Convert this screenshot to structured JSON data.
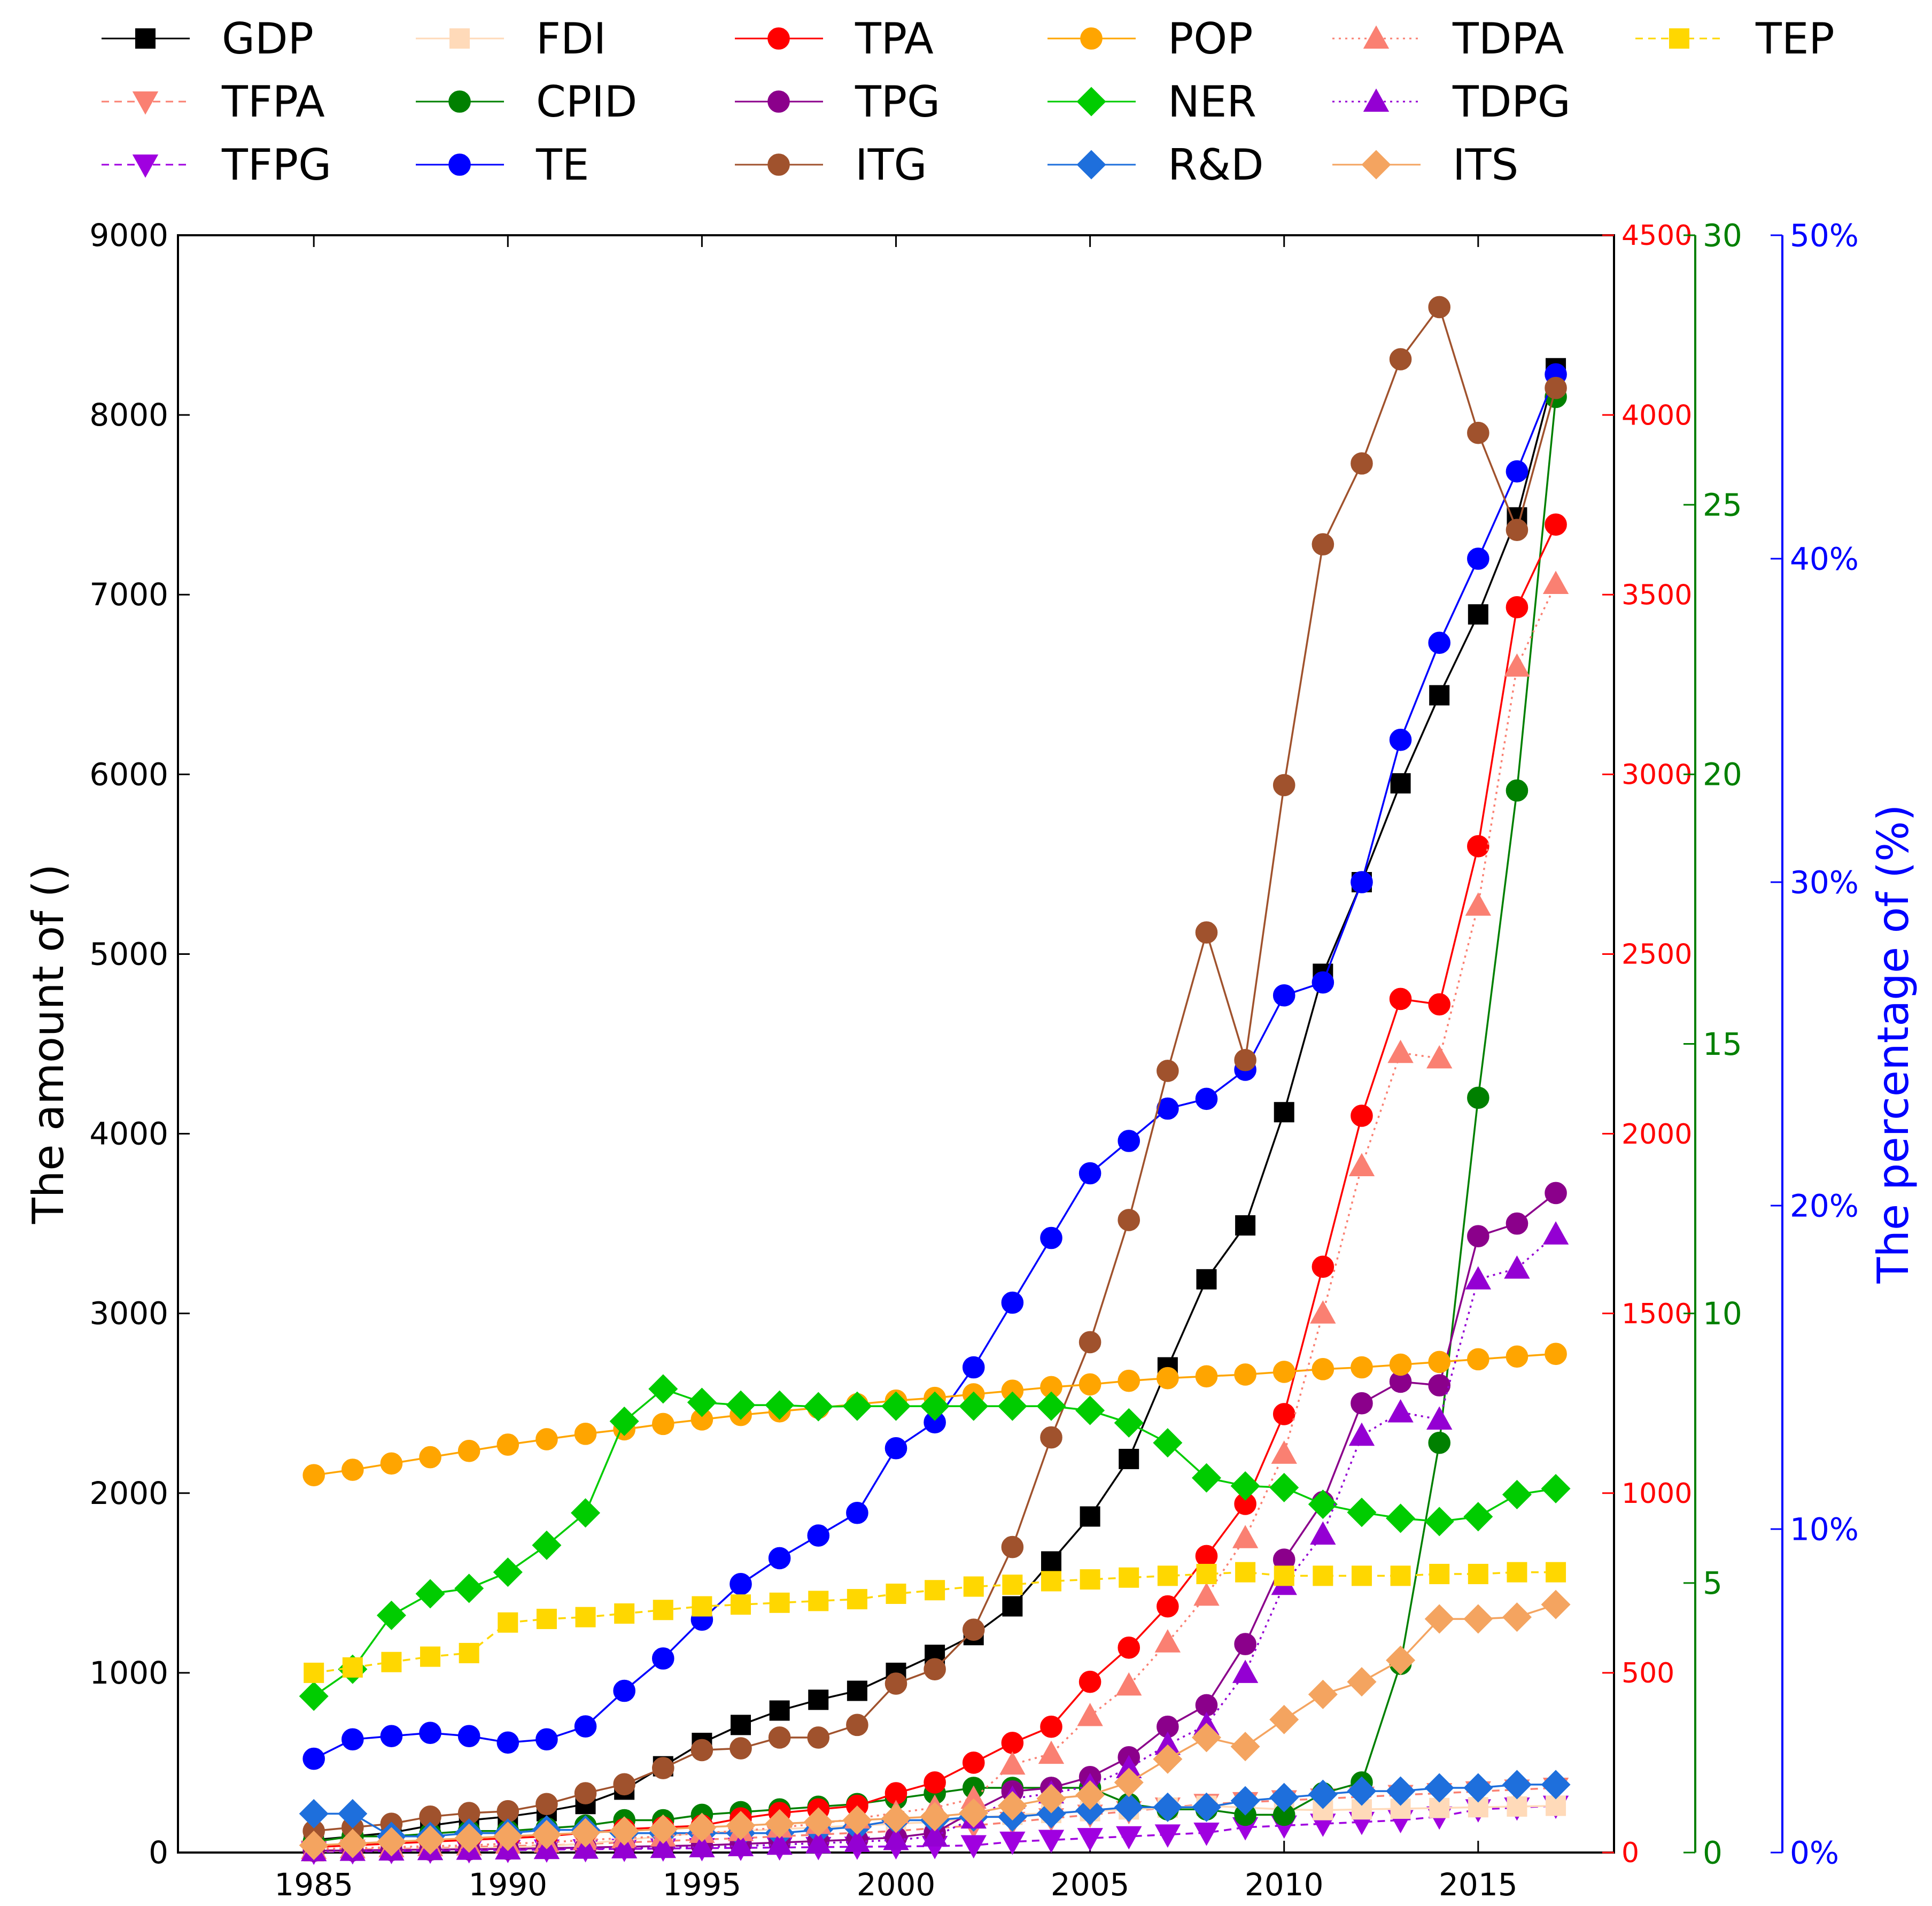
{
  "chart_data": {
    "type": "line",
    "title": "",
    "xlabel": "",
    "ylabel": "The amount of ()",
    "y2label": "",
    "y4label": "The percentage of (%)",
    "x": [
      1985,
      1986,
      1987,
      1988,
      1989,
      1990,
      1991,
      1992,
      1993,
      1994,
      1995,
      1996,
      1997,
      1998,
      1999,
      2000,
      2001,
      2002,
      2003,
      2004,
      2005,
      2006,
      2007,
      2008,
      2009,
      2010,
      2011,
      2012,
      2013,
      2014,
      2015,
      2016,
      2017
    ],
    "xlim": [
      1981.5,
      2018.5
    ],
    "x_ticks": [
      "1985",
      "1990",
      "1995",
      "2000",
      "2005",
      "2010",
      "2015"
    ],
    "axes": {
      "left": {
        "range": [
          0,
          9000
        ],
        "ticks": [
          "0",
          "1000",
          "2000",
          "3000",
          "4000",
          "5000",
          "6000",
          "7000",
          "8000",
          "9000"
        ],
        "color": "#000000"
      },
      "right_red": {
        "range": [
          0,
          4500
        ],
        "ticks": [
          "0",
          "500",
          "1000",
          "1500",
          "2000",
          "2500",
          "3000",
          "3500",
          "4000",
          "4500"
        ],
        "color": "#ff0000"
      },
      "right_green": {
        "range": [
          0,
          30
        ],
        "ticks": [
          "0",
          "5",
          "10",
          "15",
          "20",
          "25",
          "30"
        ],
        "color": "#008000"
      },
      "right_blue": {
        "range": [
          0,
          50
        ],
        "ticks": [
          "0%",
          "10%",
          "20%",
          "30%",
          "40%",
          "50%"
        ],
        "color": "#0000ff"
      }
    },
    "legend_position": "top",
    "series": [
      {
        "name": "GDP",
        "axis": "left",
        "color": "#000000",
        "marker": "square",
        "dash": "solid",
        "values": [
          70,
          90,
          110,
          150,
          180,
          200,
          230,
          270,
          350,
          480,
          610,
          710,
          790,
          850,
          900,
          1000,
          1100,
          1210,
          1370,
          1620,
          1870,
          2190,
          2700,
          3190,
          3490,
          4120,
          4890,
          5400,
          5950,
          6440,
          6890,
          7430,
          8260
        ]
      },
      {
        "name": "TFPA",
        "axis": "right_red",
        "color": "#fa8072",
        "marker": "triangle-down",
        "dash": "dash",
        "values": [
          5,
          8,
          10,
          12,
          15,
          18,
          20,
          24,
          28,
          32,
          36,
          40,
          45,
          50,
          55,
          60,
          68,
          75,
          85,
          95,
          105,
          115,
          125,
          135,
          140,
          145,
          150,
          155,
          160,
          165,
          170,
          175,
          180
        ]
      },
      {
        "name": "TFPG",
        "axis": "right_red",
        "color": "#a000e0",
        "marker": "triangle-down",
        "dash": "dash",
        "values": [
          2,
          3,
          4,
          5,
          6,
          7,
          8,
          9,
          10,
          11,
          12,
          13,
          14,
          15,
          16,
          17,
          18,
          20,
          30,
          35,
          40,
          45,
          50,
          55,
          70,
          75,
          80,
          85,
          90,
          100,
          120,
          125,
          130
        ]
      },
      {
        "name": "FDI",
        "axis": "right_red",
        "color": "#ffdab9",
        "marker": "square",
        "dash": "solid",
        "values": [
          3,
          5,
          8,
          10,
          12,
          14,
          18,
          25,
          35,
          45,
          55,
          60,
          65,
          70,
          75,
          80,
          85,
          95,
          105,
          110,
          115,
          120,
          125,
          130,
          125,
          120,
          118,
          120,
          122,
          124,
          126,
          128,
          130
        ]
      },
      {
        "name": "CPID",
        "axis": "right_green",
        "color": "#008000",
        "marker": "circle",
        "dash": "solid",
        "values": [
          0.2,
          0.3,
          0.3,
          0.35,
          0.4,
          0.4,
          0.45,
          0.5,
          0.6,
          0.6,
          0.7,
          0.75,
          0.8,
          0.85,
          0.9,
          1.0,
          1.1,
          1.2,
          1.2,
          1.2,
          1.2,
          0.9,
          0.8,
          0.8,
          0.7,
          0.7,
          1.1,
          1.3,
          3.5,
          7.6,
          14.0,
          19.7,
          27.0
        ]
      },
      {
        "name": "TE",
        "axis": "right_blue",
        "color": "#0000ff",
        "marker": "circle",
        "dash": "solid",
        "values": [
          2.9,
          3.5,
          3.6,
          3.7,
          3.6,
          3.4,
          3.5,
          3.9,
          5.0,
          6.0,
          7.2,
          8.3,
          9.1,
          9.8,
          10.5,
          12.5,
          13.3,
          15.0,
          17.0,
          19.0,
          21.0,
          22.0,
          23.0,
          23.3,
          24.2,
          26.5,
          26.9,
          30.0,
          34.4,
          37.4,
          40.0,
          42.7,
          45.7
        ]
      },
      {
        "name": "TPA",
        "axis": "right_red",
        "color": "#ff0000",
        "marker": "circle",
        "dash": "solid",
        "values": [
          15,
          20,
          25,
          30,
          35,
          40,
          45,
          55,
          65,
          70,
          75,
          95,
          110,
          120,
          130,
          165,
          195,
          250,
          305,
          350,
          475,
          570,
          685,
          825,
          970,
          1220,
          1630,
          2050,
          2375,
          2360,
          2800,
          3465,
          3695
        ]
      },
      {
        "name": "TPG",
        "axis": "right_red",
        "color": "#8b008b",
        "marker": "circle",
        "dash": "solid",
        "values": [
          5,
          6,
          7,
          8,
          9,
          10,
          12,
          14,
          16,
          18,
          20,
          24,
          28,
          32,
          36,
          42,
          55,
          115,
          170,
          180,
          210,
          265,
          350,
          410,
          580,
          815,
          975,
          1250,
          1310,
          1300,
          1715,
          1750,
          1835
        ]
      },
      {
        "name": "ITG",
        "axis": "left",
        "color": "#a0522d",
        "marker": "circle",
        "dash": "solid",
        "values": [
          120,
          140,
          160,
          200,
          220,
          230,
          270,
          330,
          380,
          470,
          570,
          580,
          640,
          640,
          710,
          940,
          1020,
          1240,
          1700,
          2310,
          2840,
          3520,
          4350,
          5120,
          4410,
          5940,
          7280,
          7730,
          8310,
          8600,
          7900,
          7360,
          8150
        ]
      },
      {
        "name": "POP",
        "axis": "left",
        "color": "#ffa500",
        "marker": "circle",
        "dash": "solid",
        "values": [
          2100,
          2130,
          2165,
          2200,
          2235,
          2270,
          2300,
          2330,
          2355,
          2385,
          2410,
          2435,
          2455,
          2475,
          2495,
          2515,
          2530,
          2550,
          2570,
          2590,
          2605,
          2625,
          2640,
          2650,
          2660,
          2675,
          2690,
          2700,
          2715,
          2730,
          2745,
          2760,
          2775
        ]
      },
      {
        "name": "NER",
        "axis": "right_green",
        "color": "#00cc00",
        "marker": "diamond",
        "dash": "solid",
        "values": [
          2.9,
          3.4,
          4.4,
          4.8,
          4.9,
          5.2,
          5.7,
          6.3,
          8.0,
          8.6,
          8.35,
          8.3,
          8.3,
          8.27,
          8.28,
          8.28,
          8.28,
          8.28,
          8.28,
          8.28,
          8.2,
          7.97,
          7.6,
          6.95,
          6.8,
          6.77,
          6.46,
          6.31,
          6.2,
          6.14,
          6.23,
          6.64,
          6.75
        ]
      },
      {
        "name": "R&D",
        "axis": "right_blue",
        "color": "#1e6fdc",
        "marker": "diamond",
        "dash": "solid",
        "values": [
          1.2,
          1.2,
          0.5,
          0.5,
          0.6,
          0.6,
          0.7,
          0.7,
          0.6,
          0.6,
          0.6,
          0.6,
          0.6,
          0.7,
          0.8,
          1.0,
          1.0,
          1.1,
          1.1,
          1.2,
          1.3,
          1.4,
          1.4,
          1.4,
          1.6,
          1.7,
          1.8,
          1.9,
          1.9,
          2.0,
          2.0,
          2.1,
          2.1
        ]
      },
      {
        "name": "TDPA",
        "axis": "right_red",
        "color": "#fa8072",
        "marker": "triangle-up",
        "dash": "dot",
        "values": [
          10,
          12,
          15,
          18,
          20,
          25,
          28,
          35,
          40,
          45,
          55,
          60,
          70,
          80,
          95,
          110,
          125,
          150,
          245,
          275,
          380,
          465,
          585,
          715,
          875,
          1110,
          1500,
          1910,
          2225,
          2210,
          2635,
          3300,
          3530
        ]
      },
      {
        "name": "TDPG",
        "axis": "right_red",
        "color": "#9400d3",
        "marker": "triangle-up",
        "dash": "dot",
        "values": [
          4,
          5,
          6,
          7,
          8,
          9,
          10,
          11,
          12,
          13,
          15,
          18,
          22,
          26,
          30,
          35,
          45,
          95,
          150,
          165,
          185,
          235,
          300,
          355,
          500,
          745,
          885,
          1160,
          1225,
          1205,
          1595,
          1625,
          1720
        ]
      },
      {
        "name": "ITS",
        "axis": "left",
        "color": "#f4a460",
        "marker": "diamond",
        "dash": "solid",
        "values": [
          40,
          50,
          60,
          70,
          80,
          90,
          100,
          110,
          120,
          130,
          140,
          150,
          160,
          170,
          180,
          190,
          200,
          220,
          260,
          300,
          320,
          390,
          520,
          640,
          590,
          740,
          880,
          950,
          1070,
          1300,
          1300,
          1310,
          1380
        ]
      },
      {
        "name": "TEP",
        "axis": "left",
        "color": "#ffd700",
        "marker": "square",
        "dash": "dash",
        "values": [
          1000,
          1030,
          1060,
          1090,
          1110,
          1280,
          1300,
          1310,
          1330,
          1350,
          1370,
          1380,
          1390,
          1400,
          1410,
          1440,
          1460,
          1480,
          1490,
          1510,
          1520,
          1530,
          1540,
          1550,
          1560,
          1540,
          1540,
          1540,
          1540,
          1550,
          1550,
          1560,
          1560
        ]
      }
    ]
  }
}
